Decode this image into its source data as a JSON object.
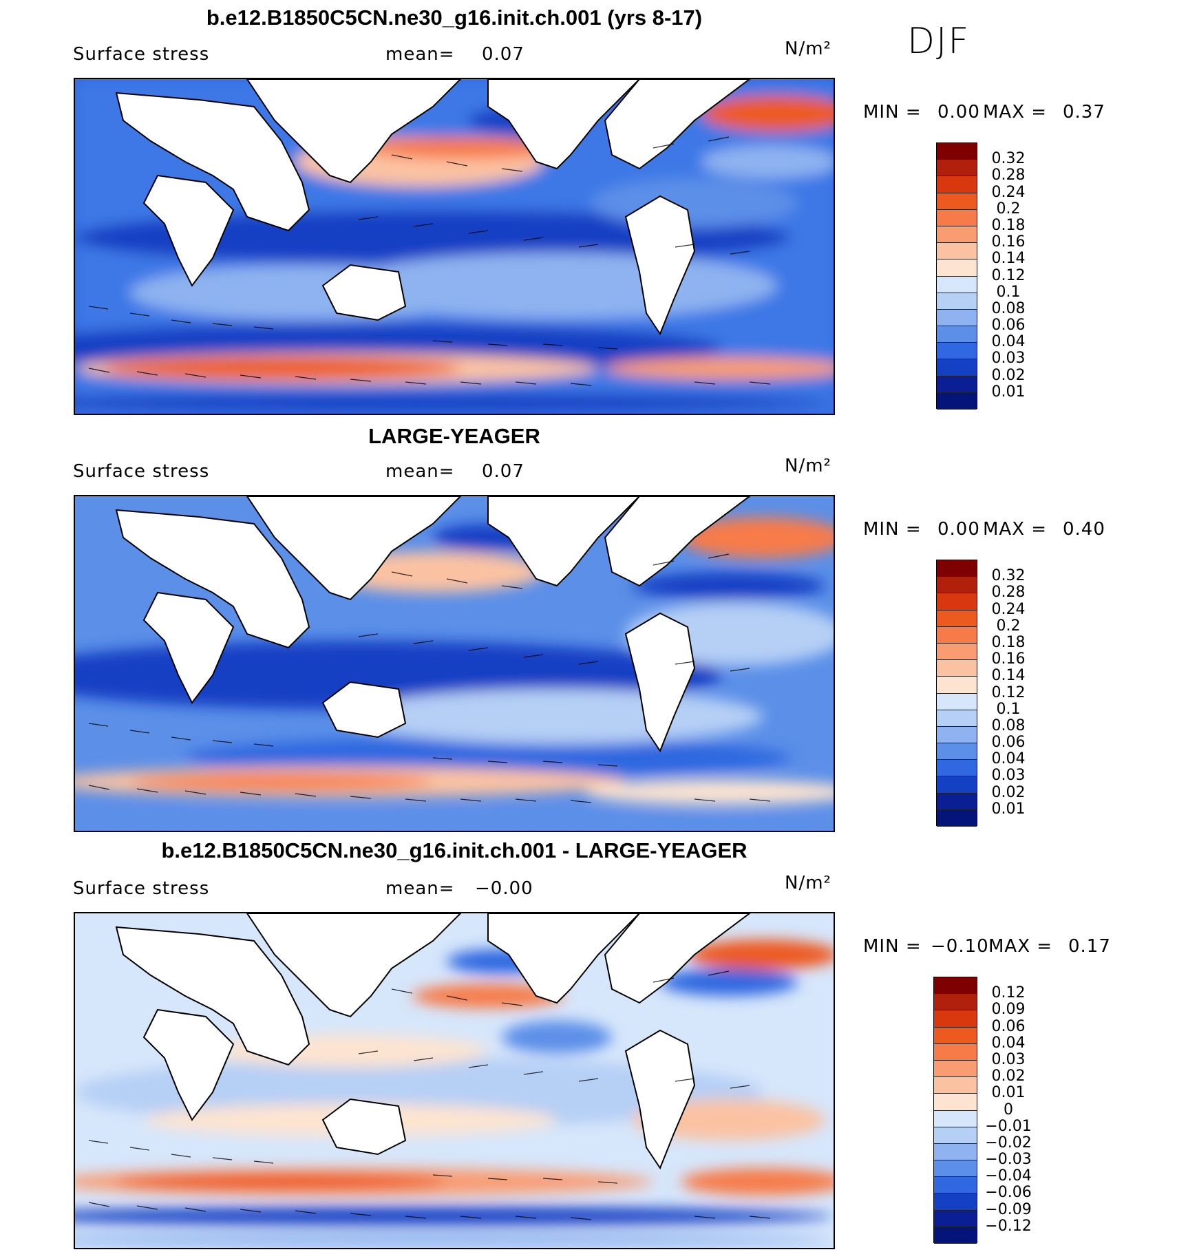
{
  "season": "DJF",
  "panels": [
    {
      "title": "b.e12.B1850C5CN.ne30_g16.init.ch.001 (yrs 8-17)",
      "variable": "Surface stress",
      "mean_label": "mean=",
      "mean_value": "0.07",
      "units": "N/m²",
      "min_label": "MIN =",
      "min_value": "0.00",
      "max_label": "MAX =",
      "max_value": "0.37",
      "colorbar": {
        "labels": [
          "0.32",
          "0.28",
          "0.24",
          "0.2",
          "0.18",
          "0.16",
          "0.14",
          "0.12",
          "0.1",
          "0.08",
          "0.06",
          "0.04",
          "0.03",
          "0.02",
          "0.01"
        ],
        "colors": [
          "#7f0000",
          "#b1200a",
          "#d9380f",
          "#ed5a20",
          "#f77b48",
          "#f99c72",
          "#fbc2a2",
          "#fde4d0",
          "#d6e6fb",
          "#b5cff5",
          "#8fb3f0",
          "#5b8fe8",
          "#2f68e0",
          "#1440c4",
          "#0a1f94",
          "#03157a"
        ]
      }
    },
    {
      "title": "LARGE-YEAGER",
      "variable": "Surface stress",
      "mean_label": "mean=",
      "mean_value": "0.07",
      "units": "N/m²",
      "min_label": "MIN =",
      "min_value": "0.00",
      "max_label": "MAX =",
      "max_value": "0.40",
      "colorbar": {
        "labels": [
          "0.32",
          "0.28",
          "0.24",
          "0.2",
          "0.18",
          "0.16",
          "0.14",
          "0.12",
          "0.1",
          "0.08",
          "0.06",
          "0.04",
          "0.03",
          "0.02",
          "0.01"
        ],
        "colors": [
          "#7f0000",
          "#b1200a",
          "#d9380f",
          "#ed5a20",
          "#f77b48",
          "#f99c72",
          "#fbc2a2",
          "#fde4d0",
          "#d6e6fb",
          "#b5cff5",
          "#8fb3f0",
          "#5b8fe8",
          "#2f68e0",
          "#1440c4",
          "#0a1f94",
          "#03157a"
        ]
      }
    },
    {
      "title": "b.e12.B1850C5CN.ne30_g16.init.ch.001 - LARGE-YEAGER",
      "variable": "Surface stress",
      "mean_label": "mean=",
      "mean_value": "−0.00",
      "units": "N/m²",
      "min_label": "MIN =",
      "min_value": "−0.10",
      "max_label": "MAX =",
      "max_value": "0.17",
      "colorbar": {
        "labels": [
          "0.12",
          "0.09",
          "0.06",
          "0.04",
          "0.03",
          "0.02",
          "0.01",
          "0",
          "−0.01",
          "−0.02",
          "−0.03",
          "−0.04",
          "−0.06",
          "−0.09",
          "−0.12"
        ],
        "colors": [
          "#7f0000",
          "#b1200a",
          "#d9380f",
          "#ed5a20",
          "#f77b48",
          "#f99c72",
          "#fbc2a2",
          "#fde4d0",
          "#d6e6fb",
          "#b5cff5",
          "#8fb3f0",
          "#5b8fe8",
          "#2f68e0",
          "#1440c4",
          "#0a1f94",
          "#03157a"
        ]
      }
    }
  ]
}
